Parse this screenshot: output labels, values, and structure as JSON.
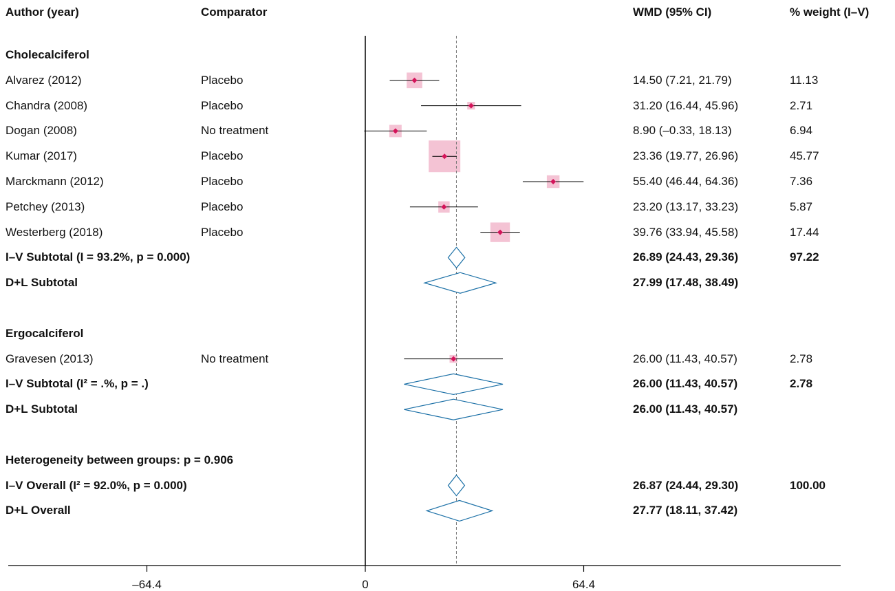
{
  "headers": {
    "author": "Author (year)",
    "comparator": "Comparator",
    "wmd": "WMD (95% CI)",
    "weight": "% weight (I–V)"
  },
  "rows": [
    {
      "kind": "group",
      "label": "Cholecalciferol"
    },
    {
      "kind": "study",
      "author": "Alvarez (2012)",
      "comparator": "Placebo",
      "est": 14.5,
      "lo": 7.21,
      "hi": 21.79,
      "ci": "14.50 (7.21, 21.79)",
      "weight": "11.13",
      "w": 11.13
    },
    {
      "kind": "study",
      "author": "Chandra (2008)",
      "comparator": "Placebo",
      "est": 31.2,
      "lo": 16.44,
      "hi": 45.96,
      "ci": "31.20 (16.44, 45.96)",
      "weight": "2.71",
      "w": 2.71
    },
    {
      "kind": "study",
      "author": "Dogan (2008)",
      "comparator": "No treatment",
      "est": 8.9,
      "lo": -0.33,
      "hi": 18.13,
      "ci": "8.90 (–0.33, 18.13)",
      "weight": "6.94",
      "w": 6.94
    },
    {
      "kind": "study",
      "author": "Kumar (2017)",
      "comparator": "Placebo",
      "est": 23.36,
      "lo": 19.77,
      "hi": 26.96,
      "ci": "23.36 (19.77, 26.96)",
      "weight": "45.77",
      "w": 45.77
    },
    {
      "kind": "study",
      "author": "Marckmann (2012)",
      "comparator": "Placebo",
      "est": 55.4,
      "lo": 46.44,
      "hi": 64.36,
      "ci": "55.40 (46.44, 64.36)",
      "weight": "7.36",
      "w": 7.36
    },
    {
      "kind": "study",
      "author": "Petchey (2013)",
      "comparator": "Placebo",
      "est": 23.2,
      "lo": 13.17,
      "hi": 33.23,
      "ci": "23.20 (13.17, 33.23)",
      "weight": "5.87",
      "w": 5.87
    },
    {
      "kind": "study",
      "author": "Westerberg (2018)",
      "comparator": "Placebo",
      "est": 39.76,
      "lo": 33.94,
      "hi": 45.58,
      "ci": "39.76 (33.94, 45.58)",
      "weight": "17.44",
      "w": 17.44
    },
    {
      "kind": "summary",
      "label": "I–V Subtotal  (I = 93.2%, p = 0.000)",
      "est": 26.89,
      "lo": 24.43,
      "hi": 29.36,
      "ci": "26.89 (24.43, 29.36)",
      "weight": "97.22"
    },
    {
      "kind": "summary",
      "label": "D+L Subtotal",
      "est": 27.99,
      "lo": 17.48,
      "hi": 38.49,
      "ci": "27.99 (17.48, 38.49)",
      "weight": ""
    },
    {
      "kind": "blank"
    },
    {
      "kind": "group",
      "label": "Ergocalciferol"
    },
    {
      "kind": "study",
      "author": "Gravesen (2013)",
      "comparator": "No treatment",
      "est": 26.0,
      "lo": 11.43,
      "hi": 40.57,
      "ci": "26.00 (11.43, 40.57)",
      "weight": "2.78",
      "w": 2.78
    },
    {
      "kind": "summary",
      "label": "I–V Subtotal  (I² = .%, p = .)",
      "est": 26.0,
      "lo": 11.43,
      "hi": 40.57,
      "ci": "26.00 (11.43, 40.57)",
      "weight": "2.78"
    },
    {
      "kind": "summary",
      "label": "D+L Subtotal",
      "est": 26.0,
      "lo": 11.43,
      "hi": 40.57,
      "ci": "26.00 (11.43, 40.57)",
      "weight": ""
    },
    {
      "kind": "blank"
    },
    {
      "kind": "group",
      "label": "Heterogeneity between groups: p = 0.906"
    },
    {
      "kind": "summary",
      "label": "I–V Overall  (I² = 92.0%, p = 0.000)",
      "est": 26.87,
      "lo": 24.44,
      "hi": 29.3,
      "ci": "26.87 (24.44, 29.30)",
      "weight": "100.00"
    },
    {
      "kind": "summary",
      "label": "D+L Overall",
      "est": 27.77,
      "lo": 18.11,
      "hi": 37.42,
      "ci": "27.77 (18.11, 37.42)",
      "weight": ""
    }
  ],
  "chart_data": {
    "type": "forest",
    "xlabel": "",
    "xlim": [
      -106,
      141
    ],
    "ticks": [
      -64.4,
      0,
      64.4
    ],
    "tick_labels": [
      "–64.4",
      "0",
      "64.4"
    ],
    "null_line": 0,
    "overall_line": 26.87,
    "colors": {
      "box": "#f4c3d4",
      "point": "#d4145a",
      "ci_line": "#000000",
      "diamond": "#1a6fa6",
      "overall_line": "#777777"
    }
  }
}
